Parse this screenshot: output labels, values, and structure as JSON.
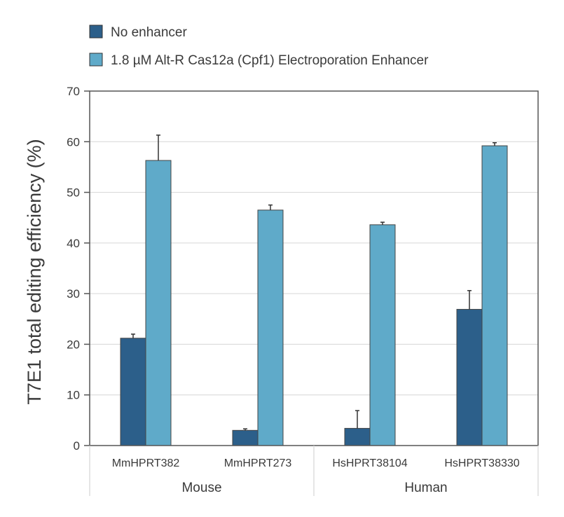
{
  "colors": {
    "series_no_enhancer": "#2c5f8a",
    "series_enhancer": "#5faac9",
    "axis": "#555555",
    "grid": "#d6d6d6",
    "error_bar": "#333333"
  },
  "chart_data": {
    "type": "bar",
    "title": "",
    "ylabel": "T7E1 total editing efficiency (%)",
    "xlabel": "",
    "ylim": [
      0,
      70
    ],
    "yticks": [
      0,
      10,
      20,
      30,
      40,
      50,
      60,
      70
    ],
    "grid": "horizontal",
    "legend_position": "top-left",
    "categories": [
      "MmHPRT382",
      "MmHPRT273",
      "HsHPRT38104",
      "HsHPRT38330"
    ],
    "groups": [
      {
        "label": "Mouse",
        "categories": [
          "MmHPRT382",
          "MmHPRT273"
        ]
      },
      {
        "label": "Human",
        "categories": [
          "HsHPRT38104",
          "HsHPRT38330"
        ]
      }
    ],
    "series": [
      {
        "name": "No enhancer",
        "values": [
          21.2,
          3.0,
          3.4,
          26.9
        ],
        "errors": [
          0.8,
          0.3,
          3.5,
          3.7
        ]
      },
      {
        "name": "1.8 µM Alt-R Cas12a (Cpf1) Electroporation Enhancer",
        "values": [
          56.3,
          46.5,
          43.6,
          59.2
        ],
        "errors": [
          5.0,
          1.0,
          0.5,
          0.6
        ]
      }
    ]
  }
}
